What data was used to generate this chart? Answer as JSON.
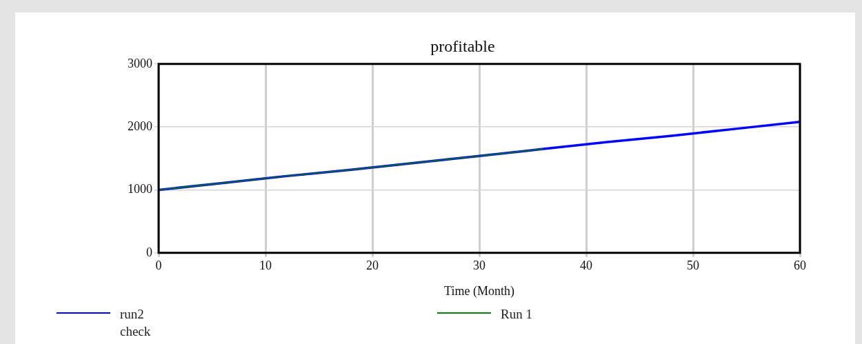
{
  "chart_data": {
    "type": "line",
    "title": "profitable",
    "xlabel": "Time (Month)",
    "xlim": [
      0,
      60
    ],
    "xticks": [
      0,
      10,
      20,
      30,
      40,
      50,
      60
    ],
    "ylim": [
      0,
      3000
    ],
    "yticks": [
      0,
      1000,
      2000,
      3000
    ],
    "grid": true,
    "legend": "bottom",
    "marker": "none",
    "line_style": "solid",
    "series": [
      {
        "name": "run2\ncheck",
        "color": "#0000ff",
        "x": [
          0,
          6,
          12,
          18,
          24,
          30,
          36,
          42,
          48,
          54,
          60
        ],
        "values": [
          1000,
          1110,
          1220,
          1320,
          1430,
          1540,
          1650,
          1760,
          1860,
          1970,
          2080
        ]
      },
      {
        "name": "Run 1",
        "color": "#008000",
        "x": [
          0,
          6,
          12,
          18,
          24,
          30,
          36
        ],
        "values": [
          1000,
          1110,
          1220,
          1320,
          1430,
          1540,
          1650
        ]
      }
    ]
  }
}
